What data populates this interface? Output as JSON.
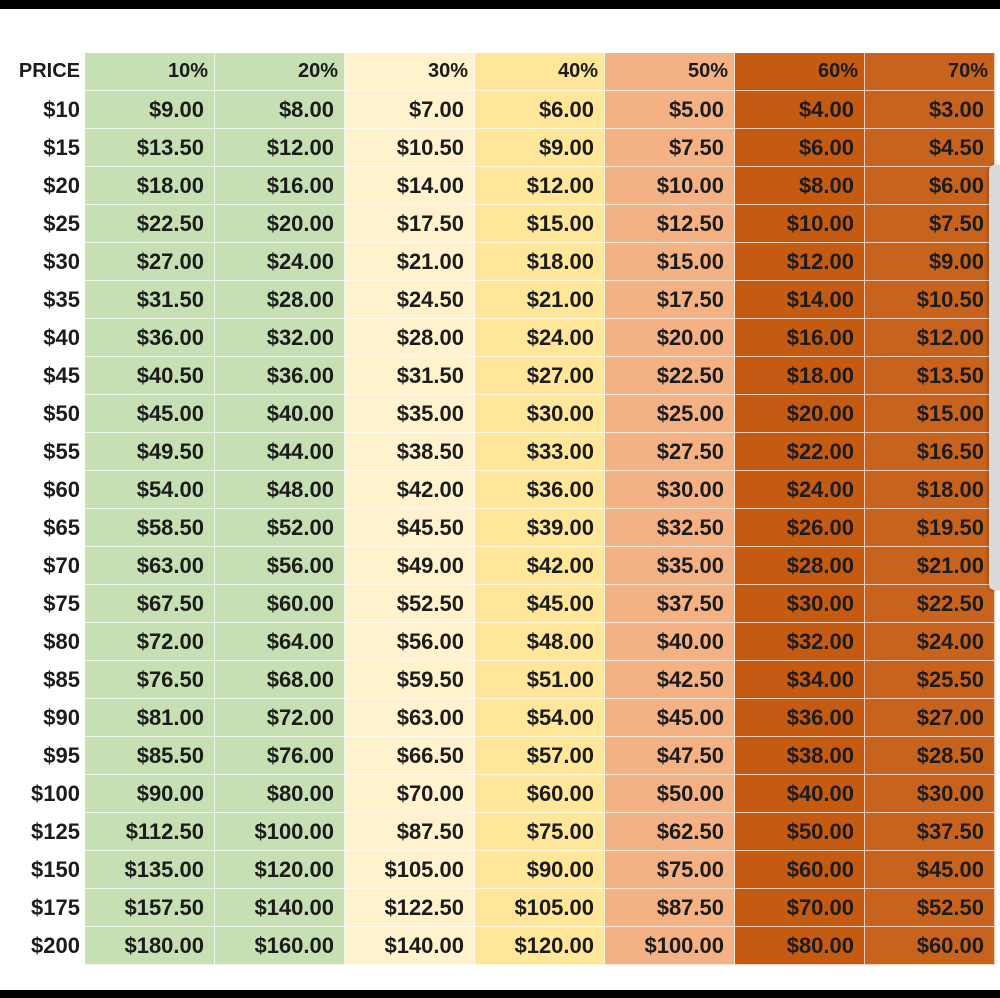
{
  "table": {
    "header": [
      "PRICE",
      "10%",
      "20%",
      "30%",
      "40%",
      "50%",
      "60%",
      "70%"
    ],
    "rows": [
      [
        "$10",
        "$9.00",
        "$8.00",
        "$7.00",
        "$6.00",
        "$5.00",
        "$4.00",
        "$3.00"
      ],
      [
        "$15",
        "$13.50",
        "$12.00",
        "$10.50",
        "$9.00",
        "$7.50",
        "$6.00",
        "$4.50"
      ],
      [
        "$20",
        "$18.00",
        "$16.00",
        "$14.00",
        "$12.00",
        "$10.00",
        "$8.00",
        "$6.00"
      ],
      [
        "$25",
        "$22.50",
        "$20.00",
        "$17.50",
        "$15.00",
        "$12.50",
        "$10.00",
        "$7.50"
      ],
      [
        "$30",
        "$27.00",
        "$24.00",
        "$21.00",
        "$18.00",
        "$15.00",
        "$12.00",
        "$9.00"
      ],
      [
        "$35",
        "$31.50",
        "$28.00",
        "$24.50",
        "$21.00",
        "$17.50",
        "$14.00",
        "$10.50"
      ],
      [
        "$40",
        "$36.00",
        "$32.00",
        "$28.00",
        "$24.00",
        "$20.00",
        "$16.00",
        "$12.00"
      ],
      [
        "$45",
        "$40.50",
        "$36.00",
        "$31.50",
        "$27.00",
        "$22.50",
        "$18.00",
        "$13.50"
      ],
      [
        "$50",
        "$45.00",
        "$40.00",
        "$35.00",
        "$30.00",
        "$25.00",
        "$20.00",
        "$15.00"
      ],
      [
        "$55",
        "$49.50",
        "$44.00",
        "$38.50",
        "$33.00",
        "$27.50",
        "$22.00",
        "$16.50"
      ],
      [
        "$60",
        "$54.00",
        "$48.00",
        "$42.00",
        "$36.00",
        "$30.00",
        "$24.00",
        "$18.00"
      ],
      [
        "$65",
        "$58.50",
        "$52.00",
        "$45.50",
        "$39.00",
        "$32.50",
        "$26.00",
        "$19.50"
      ],
      [
        "$70",
        "$63.00",
        "$56.00",
        "$49.00",
        "$42.00",
        "$35.00",
        "$28.00",
        "$21.00"
      ],
      [
        "$75",
        "$67.50",
        "$60.00",
        "$52.50",
        "$45.00",
        "$37.50",
        "$30.00",
        "$22.50"
      ],
      [
        "$80",
        "$72.00",
        "$64.00",
        "$56.00",
        "$48.00",
        "$40.00",
        "$32.00",
        "$24.00"
      ],
      [
        "$85",
        "$76.50",
        "$68.00",
        "$59.50",
        "$51.00",
        "$42.50",
        "$34.00",
        "$25.50"
      ],
      [
        "$90",
        "$81.00",
        "$72.00",
        "$63.00",
        "$54.00",
        "$45.00",
        "$36.00",
        "$27.00"
      ],
      [
        "$95",
        "$85.50",
        "$76.00",
        "$66.50",
        "$57.00",
        "$47.50",
        "$38.00",
        "$28.50"
      ],
      [
        "$100",
        "$90.00",
        "$80.00",
        "$70.00",
        "$60.00",
        "$50.00",
        "$40.00",
        "$30.00"
      ],
      [
        "$125",
        "$112.50",
        "$100.00",
        "$87.50",
        "$75.00",
        "$62.50",
        "$50.00",
        "$37.50"
      ],
      [
        "$150",
        "$135.00",
        "$120.00",
        "$105.00",
        "$90.00",
        "$75.00",
        "$60.00",
        "$45.00"
      ],
      [
        "$175",
        "$157.50",
        "$140.00",
        "$122.50",
        "$105.00",
        "$87.50",
        "$70.00",
        "$52.50"
      ],
      [
        "$200",
        "$180.00",
        "$160.00",
        "$140.00",
        "$120.00",
        "$100.00",
        "$80.00",
        "$60.00"
      ]
    ]
  }
}
